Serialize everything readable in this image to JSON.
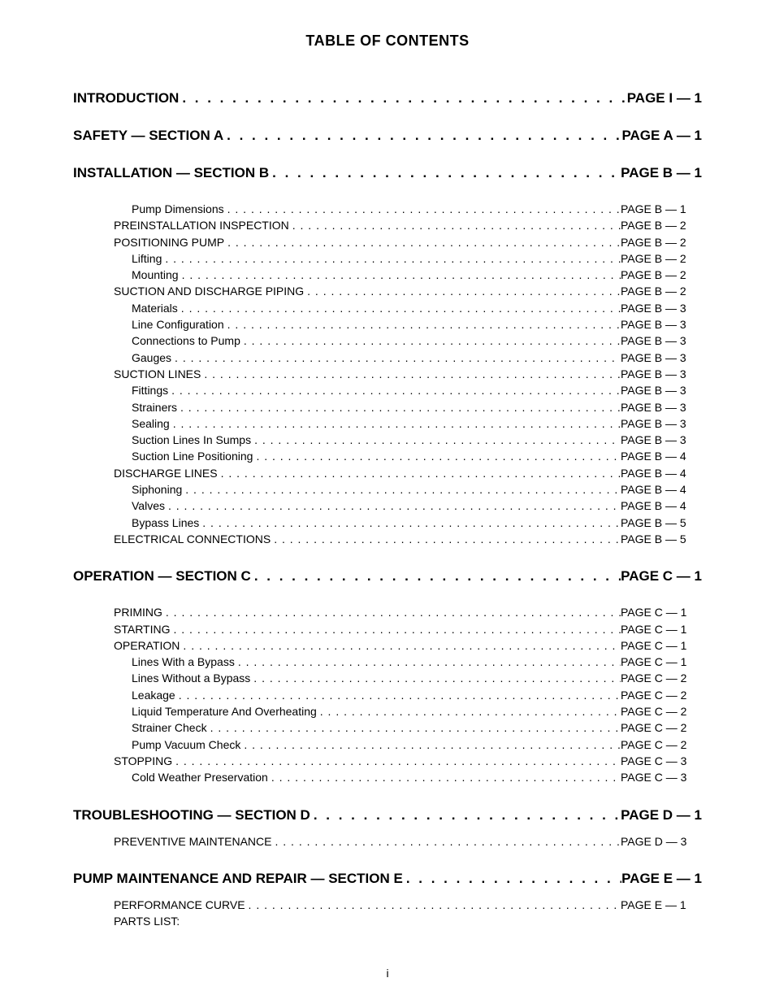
{
  "title": "TABLE OF CONTENTS",
  "footer": "i",
  "dots_long": ". . . . . . . . . . . . . . . . . . . . . . . . . . . . . . . . . . . . . . . . . . . . . . . . . . . . . . . . . . . . . . . . . . . . . . . . . . . . . . . . . . . . . . . . . . . . . . . . . . . . . . . . . . . . . . . . . . . . . . . .",
  "dots_short": ". . . . . . . . . . . . . . . . . . . . . . . . . . . . . . . . . . . . . . . . . . . . . . . . . . . . . . . . . . . . . . . . . . . . . . . . . . . . . . . . . . . . . . . . . . . . . . . . . . . . . . . . . . . . . . . . . . . . . . . . . . . . . . . . . . . . . . . . . . . . . . . . . . . . . . . . . . . . . . . . . . . . . . . . . . . . . . . . . . . .",
  "sections": [
    {
      "label": "INTRODUCTION",
      "page": "PAGE I — 1",
      "items": []
    },
    {
      "label": "SAFETY — SECTION A",
      "page": "PAGE A — 1",
      "items": []
    },
    {
      "label": "INSTALLATION — SECTION B",
      "page": "PAGE B — 1",
      "items": [
        {
          "level": 2,
          "label": "Pump Dimensions",
          "page": "PAGE B — 1"
        },
        {
          "level": 1,
          "label": "PREINSTALLATION INSPECTION",
          "page": "PAGE B — 2"
        },
        {
          "level": 1,
          "label": "POSITIONING PUMP",
          "page": "PAGE B — 2"
        },
        {
          "level": 2,
          "label": "Lifting",
          "page": "PAGE B — 2"
        },
        {
          "level": 2,
          "label": "Mounting",
          "page": "PAGE B — 2"
        },
        {
          "level": 1,
          "label": "SUCTION AND DISCHARGE PIPING",
          "page": "PAGE B — 2"
        },
        {
          "level": 2,
          "label": "Materials",
          "page": "PAGE B — 3"
        },
        {
          "level": 2,
          "label": "Line Configuration",
          "page": "PAGE B — 3"
        },
        {
          "level": 2,
          "label": "Connections to Pump",
          "page": "PAGE B — 3"
        },
        {
          "level": 2,
          "label": "Gauges",
          "page": "PAGE B — 3"
        },
        {
          "level": 1,
          "label": "SUCTION LINES",
          "page": "PAGE B — 3"
        },
        {
          "level": 2,
          "label": "Fittings",
          "page": "PAGE B — 3"
        },
        {
          "level": 2,
          "label": "Strainers",
          "page": "PAGE B — 3"
        },
        {
          "level": 2,
          "label": "Sealing",
          "page": "PAGE B — 3"
        },
        {
          "level": 2,
          "label": "Suction Lines In Sumps",
          "page": "PAGE B — 3"
        },
        {
          "level": 2,
          "label": "Suction Line Positioning",
          "page": "PAGE B — 4"
        },
        {
          "level": 1,
          "label": "DISCHARGE LINES",
          "page": "PAGE B — 4"
        },
        {
          "level": 2,
          "label": "Siphoning",
          "page": "PAGE B — 4"
        },
        {
          "level": 2,
          "label": "Valves",
          "page": "PAGE B — 4"
        },
        {
          "level": 2,
          "label": "Bypass Lines",
          "page": "PAGE B — 5"
        },
        {
          "level": 1,
          "label": "ELECTRICAL CONNECTIONS",
          "page": "PAGE B — 5"
        }
      ]
    },
    {
      "label": "OPERATION — SECTION C",
      "page": "PAGE C — 1",
      "items": [
        {
          "level": 1,
          "label": "PRIMING",
          "page": "PAGE C — 1"
        },
        {
          "level": 1,
          "label": "STARTING",
          "page": "PAGE C — 1"
        },
        {
          "level": 1,
          "label": "OPERATION",
          "page": "PAGE C — 1"
        },
        {
          "level": 2,
          "label": "Lines With a Bypass",
          "page": "PAGE C — 1"
        },
        {
          "level": 2,
          "label": "Lines Without a Bypass",
          "page": "PAGE C — 2"
        },
        {
          "level": 2,
          "label": "Leakage",
          "page": "PAGE C — 2"
        },
        {
          "level": 2,
          "label": "Liquid Temperature And Overheating",
          "page": "PAGE C — 2"
        },
        {
          "level": 2,
          "label": "Strainer Check",
          "page": "PAGE C — 2"
        },
        {
          "level": 2,
          "label": "Pump Vacuum Check",
          "page": "PAGE C — 2"
        },
        {
          "level": 1,
          "label": "STOPPING",
          "page": "PAGE C — 3"
        },
        {
          "level": 2,
          "label": "Cold Weather Preservation",
          "page": "PAGE C — 3"
        }
      ]
    },
    {
      "label": "TROUBLESHOOTING — SECTION D",
      "page": "PAGE D — 1",
      "tight": true,
      "items": [
        {
          "level": 1,
          "label": "PREVENTIVE MAINTENANCE",
          "page": "PAGE D — 3"
        }
      ]
    },
    {
      "label": "PUMP MAINTENANCE AND REPAIR — SECTION E",
      "page": "PAGE E — 1",
      "tight": true,
      "items": [
        {
          "level": 1,
          "label": "PERFORMANCE CURVE",
          "page": "PAGE E — 1"
        },
        {
          "level": 1,
          "label": "PARTS LIST:",
          "nopage": true
        }
      ]
    }
  ]
}
